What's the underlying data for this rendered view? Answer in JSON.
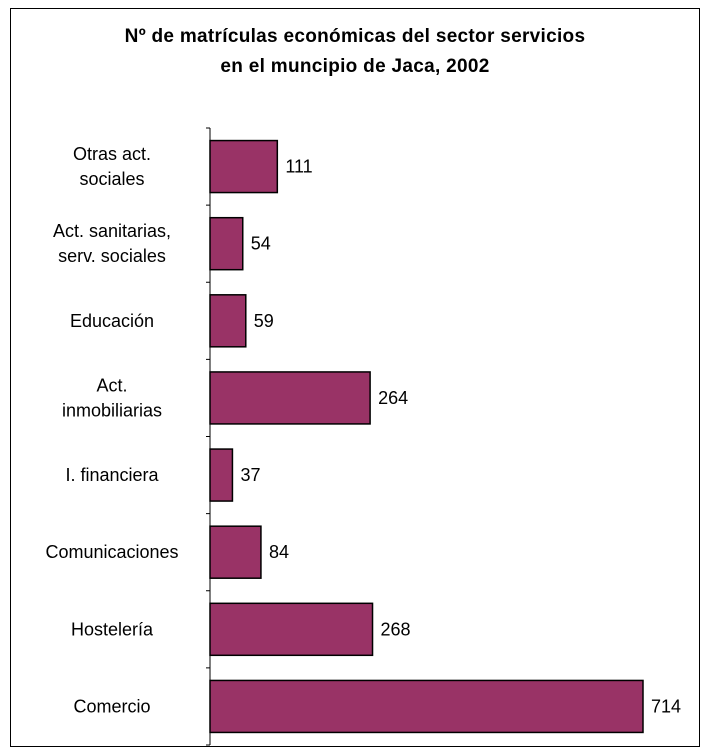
{
  "chart_data": {
    "type": "bar",
    "orientation": "horizontal",
    "title_lines": [
      "Nº de matrículas económicas del sector servicios",
      "en el muncipio de Jaca, 2002"
    ],
    "categories": [
      [
        "Otras act.",
        "sociales"
      ],
      [
        "Act. sanitarias,",
        "serv. sociales"
      ],
      [
        "Educación"
      ],
      [
        "Act.",
        "inmobiliarias"
      ],
      [
        "I. financiera"
      ],
      [
        "Comunicaciones"
      ],
      [
        "Hostelería"
      ],
      [
        "Comercio"
      ]
    ],
    "values": [
      111,
      54,
      59,
      264,
      37,
      84,
      268,
      714
    ],
    "value_labels": [
      "111",
      "54",
      "59",
      "264",
      "37",
      "84",
      "268",
      "714"
    ],
    "xlim": [
      0,
      714
    ],
    "grid": false,
    "legend": "none",
    "bar_color": "#993366"
  }
}
